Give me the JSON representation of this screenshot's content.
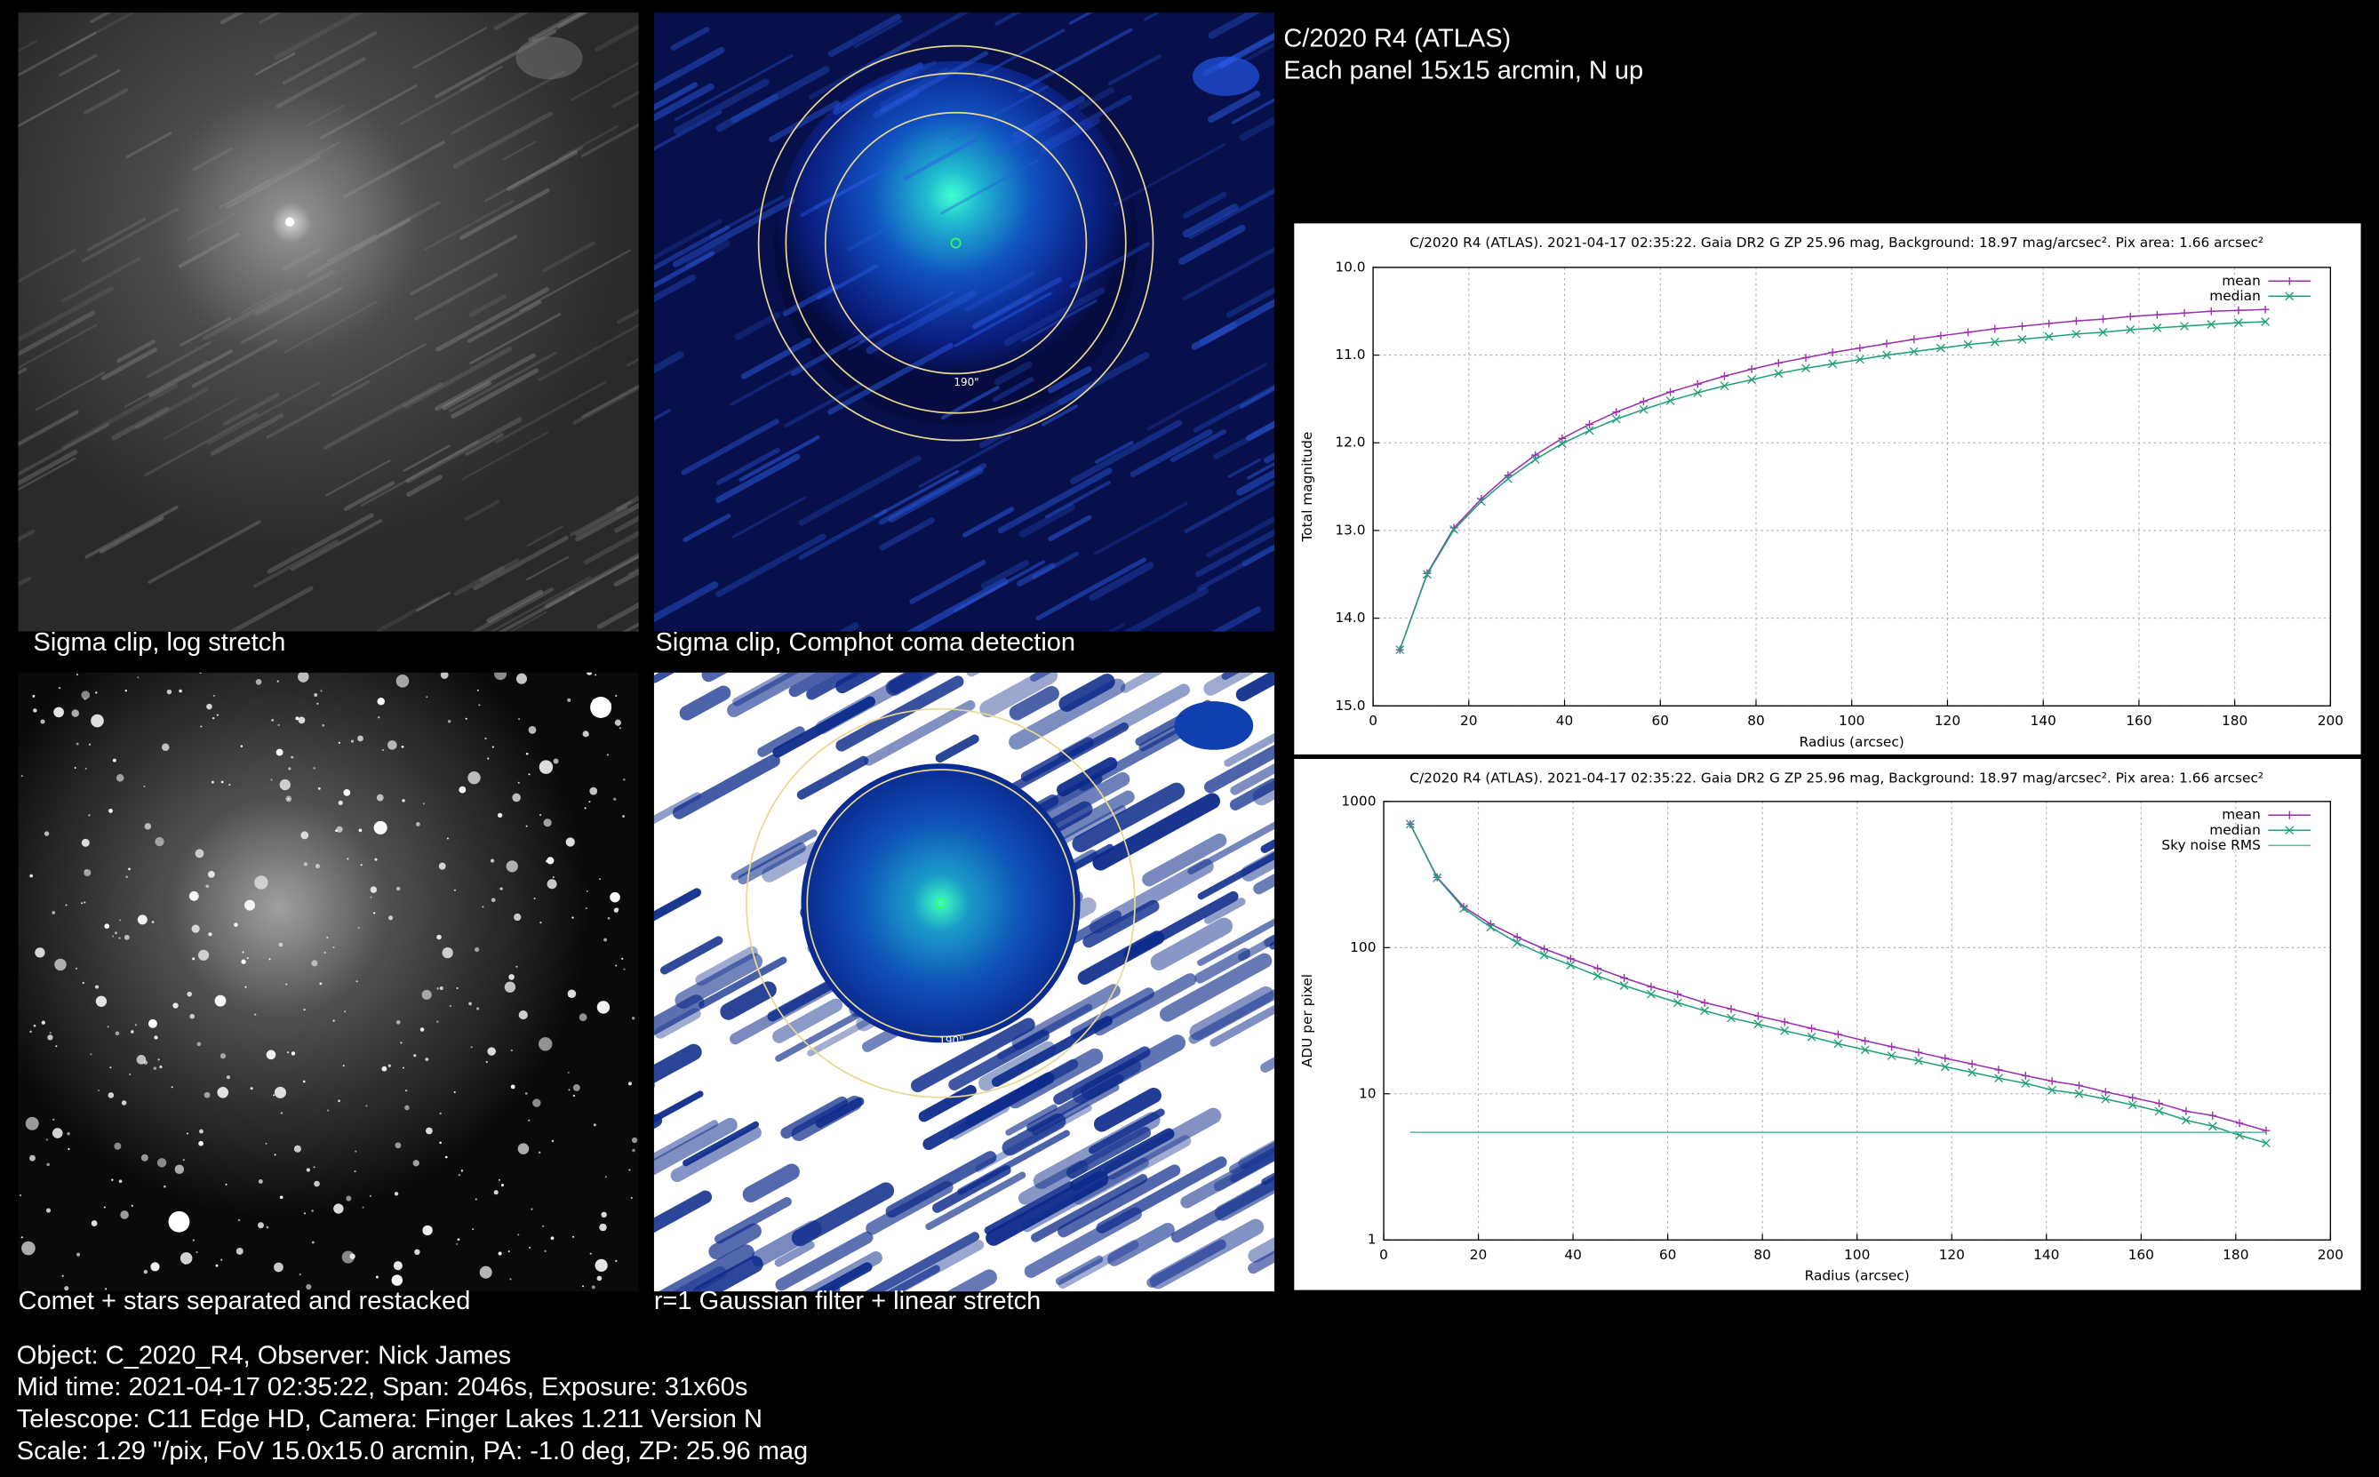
{
  "title": "C/2020 R4 (ATLAS)",
  "subtitle": "Each panel 15x15 arcmin, N up",
  "panels": [
    {
      "caption": "Sigma clip, log stretch"
    },
    {
      "caption": "Sigma clip, Comphot coma detection",
      "ring_label": "190\""
    },
    {
      "caption": "Comet + stars separated and restacked"
    },
    {
      "caption": "r=1 Gaussian filter + linear stretch",
      "ring_label": "190\""
    }
  ],
  "info": [
    "Object: C_2020_R4, Observer: Nick James",
    "Mid time: 2021-04-17 02:35:22, Span: 2046s, Exposure: 31x60s",
    "Telescope: C11 Edge HD, Camera: Finger Lakes 1.211 Version N",
    "Scale: 1.29 \"/pix, FoV 15.0x15.0 arcmin, PA: -1.0 deg, ZP: 25.96 mag"
  ],
  "chart_data": [
    {
      "type": "line",
      "title": "C/2020 R4 (ATLAS). 2021-04-17 02:35:22. Gaia DR2 G ZP 25.96 mag, Background: 18.97 mag/arcsec². Pix area: 1.66 arcsec²",
      "xlabel": "Radius (arcsec)",
      "ylabel": "Total magnitude",
      "x": [
        5.6,
        11.3,
        16.9,
        22.6,
        28.2,
        33.9,
        39.5,
        45.2,
        50.8,
        56.5,
        62.1,
        67.8,
        73.4,
        79.1,
        84.7,
        90.4,
        96.0,
        101.7,
        107.3,
        113.0,
        118.6,
        124.3,
        129.9,
        135.6,
        141.2,
        146.9,
        152.5,
        158.2,
        163.8,
        169.5,
        175.1,
        180.8,
        186.4
      ],
      "series": [
        {
          "name": "mean",
          "color": "#9b2fae",
          "marker": "plus",
          "values": [
            14.36,
            13.49,
            12.97,
            12.64,
            12.37,
            12.14,
            11.95,
            11.79,
            11.65,
            11.53,
            11.42,
            11.33,
            11.24,
            11.16,
            11.09,
            11.03,
            10.97,
            10.92,
            10.87,
            10.82,
            10.78,
            10.74,
            10.7,
            10.67,
            10.64,
            10.61,
            10.59,
            10.56,
            10.54,
            10.52,
            10.5,
            10.49,
            10.48
          ]
        },
        {
          "name": "median",
          "color": "#20a07a",
          "marker": "cross",
          "values": [
            14.36,
            13.5,
            12.99,
            12.67,
            12.41,
            12.19,
            12.01,
            11.86,
            11.73,
            11.62,
            11.52,
            11.43,
            11.35,
            11.28,
            11.21,
            11.15,
            11.1,
            11.05,
            11.0,
            10.96,
            10.92,
            10.88,
            10.85,
            10.82,
            10.79,
            10.76,
            10.74,
            10.71,
            10.69,
            10.67,
            10.65,
            10.63,
            10.62
          ]
        }
      ],
      "xlim": [
        0,
        200
      ],
      "xticks": [
        0,
        20,
        40,
        60,
        80,
        100,
        120,
        140,
        160,
        180,
        200
      ],
      "ylim": [
        15,
        10
      ],
      "yticks": [
        {
          "value": 10,
          "label": "10.0"
        },
        {
          "value": 11,
          "label": "11.0"
        },
        {
          "value": 12,
          "label": "12.0"
        },
        {
          "value": 13,
          "label": "13.0"
        },
        {
          "value": 14,
          "label": "14.0"
        },
        {
          "value": 15,
          "label": "15.0"
        }
      ],
      "log": false,
      "grid": true,
      "legend": "upper right"
    },
    {
      "type": "line",
      "title": "C/2020 R4 (ATLAS). 2021-04-17 02:35:22. Gaia DR2 G ZP 25.96 mag, Background: 18.97 mag/arcsec². Pix area: 1.66 arcsec²",
      "xlabel": "Radius (arcsec)",
      "ylabel": "ADU per pixel",
      "x": [
        5.6,
        11.3,
        16.9,
        22.6,
        28.2,
        33.9,
        39.5,
        45.2,
        50.8,
        56.5,
        62.1,
        67.8,
        73.4,
        79.1,
        84.7,
        90.4,
        96.0,
        101.7,
        107.3,
        113.0,
        118.6,
        124.3,
        129.9,
        135.6,
        141.2,
        146.9,
        152.5,
        158.2,
        163.8,
        169.5,
        175.1,
        180.8,
        186.4
      ],
      "series": [
        {
          "name": "mean",
          "color": "#9b2fae",
          "marker": "plus",
          "values": [
            700,
            303,
            190,
            145,
            118,
            98,
            84,
            72,
            62,
            54,
            48,
            42,
            38,
            34,
            31,
            28,
            25.5,
            23,
            21,
            19.2,
            17.5,
            16,
            14.6,
            13.3,
            12.2,
            11.4,
            10.3,
            9.4,
            8.6,
            7.6,
            7.1,
            6.3,
            5.6
          ]
        },
        {
          "name": "median",
          "color": "#20a07a",
          "marker": "cross",
          "values": [
            700,
            300,
            185,
            138,
            108,
            89,
            76,
            64,
            55,
            48,
            42,
            37,
            33,
            30,
            27,
            24.5,
            22,
            20,
            18.2,
            16.8,
            15.3,
            14,
            12.8,
            11.8,
            10.6,
            10,
            9.2,
            8.4,
            7.6,
            6.6,
            6.0,
            5.2,
            4.6
          ]
        },
        {
          "name": "Sky noise RMS",
          "color": "#4fb8a8",
          "marker": "none",
          "values": [
            5.45,
            5.45,
            5.45,
            5.45,
            5.45,
            5.45,
            5.45,
            5.45,
            5.45,
            5.45,
            5.45,
            5.45,
            5.45,
            5.45,
            5.45,
            5.45,
            5.45,
            5.45,
            5.45,
            5.45,
            5.45,
            5.45,
            5.45,
            5.45,
            5.45,
            5.45,
            5.45,
            5.45,
            5.45,
            5.45,
            5.45,
            5.45,
            5.45
          ]
        }
      ],
      "xlim": [
        0,
        200
      ],
      "xticks": [
        0,
        20,
        40,
        60,
        80,
        100,
        120,
        140,
        160,
        180,
        200
      ],
      "ylim": [
        1,
        1000
      ],
      "yticks": [
        1,
        10,
        100,
        1000
      ],
      "log": true,
      "grid": true,
      "legend": "upper right"
    }
  ]
}
